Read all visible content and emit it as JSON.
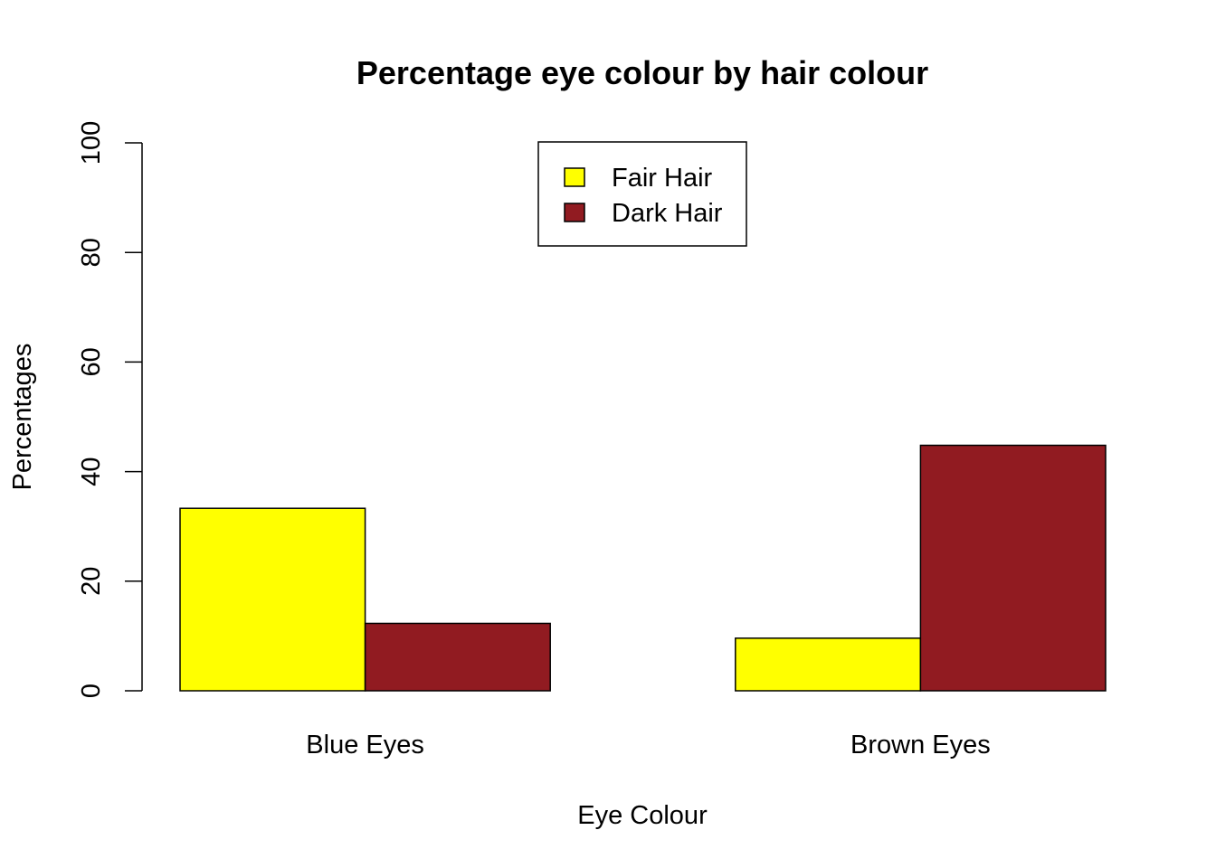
{
  "chart_data": {
    "type": "bar",
    "grouped": true,
    "title": "Percentage eye colour by hair colour",
    "xlabel": "Eye Colour",
    "ylabel": "Percentages",
    "ylim": [
      0,
      100
    ],
    "yticks": [
      0,
      20,
      40,
      60,
      80,
      100
    ],
    "categories": [
      "Blue Eyes",
      "Brown Eyes"
    ],
    "series": [
      {
        "name": "Fair Hair",
        "color": "#ffff00",
        "values": [
          33.3,
          9.6
        ]
      },
      {
        "name": "Dark Hair",
        "color": "#911b21",
        "values": [
          12.3,
          44.8
        ]
      }
    ],
    "legend_position": "top-center",
    "grid": false
  }
}
